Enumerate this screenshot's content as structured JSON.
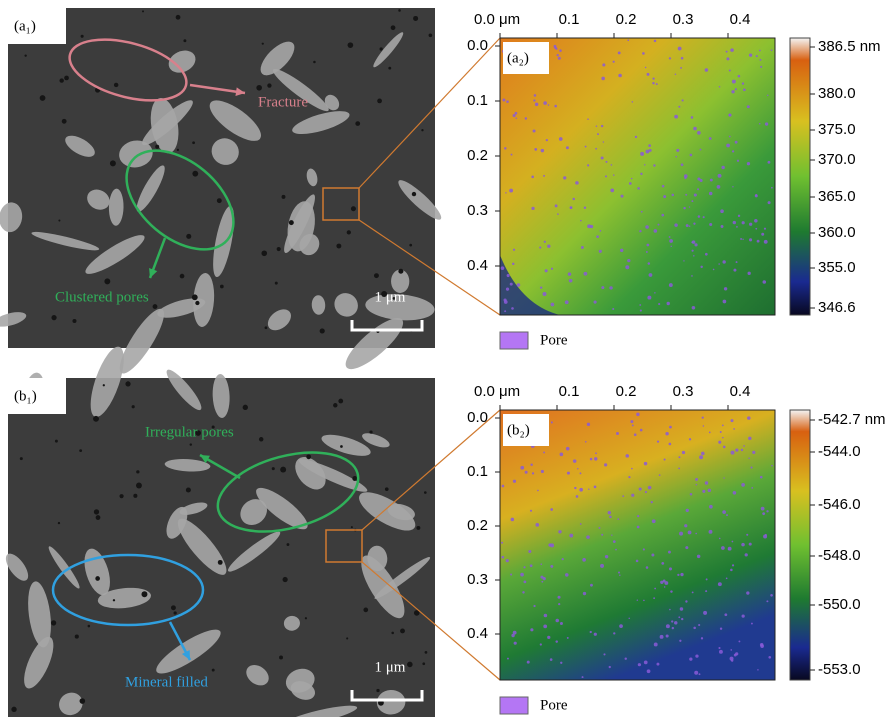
{
  "panels": [
    {
      "sem": {
        "label": "(a₁)",
        "annotations": [
          "Fracture",
          "Clustered pores"
        ],
        "scale_bar": "1 μm"
      },
      "afm": {
        "label": "(a₂)",
        "x_ticks": [
          "0.0 μm",
          "0.1",
          "0.2",
          "0.3",
          "0.4"
        ],
        "y_ticks": [
          "0.0",
          "0.1",
          "0.2",
          "0.3",
          "0.4"
        ],
        "colorbar_ticks": [
          "386.5 nm",
          "380.0",
          "375.0",
          "370.0",
          "365.0",
          "360.0",
          "355.0",
          "346.6"
        ],
        "legend": "Pore"
      }
    },
    {
      "sem": {
        "label": "(b₁)",
        "annotations": [
          "Irregular pores",
          "Mineral filled"
        ],
        "scale_bar": "1 μm"
      },
      "afm": {
        "label": "(b₂)",
        "x_ticks": [
          "0.0 μm",
          "0.1",
          "0.2",
          "0.3",
          "0.4"
        ],
        "y_ticks": [
          "0.0",
          "0.1",
          "0.2",
          "0.3",
          "0.4"
        ],
        "colorbar_ticks": [
          "-542.7 nm",
          "-544.0",
          "-546.0",
          "-548.0",
          "-550.0",
          "-553.0"
        ],
        "legend": "Pore"
      }
    }
  ]
}
